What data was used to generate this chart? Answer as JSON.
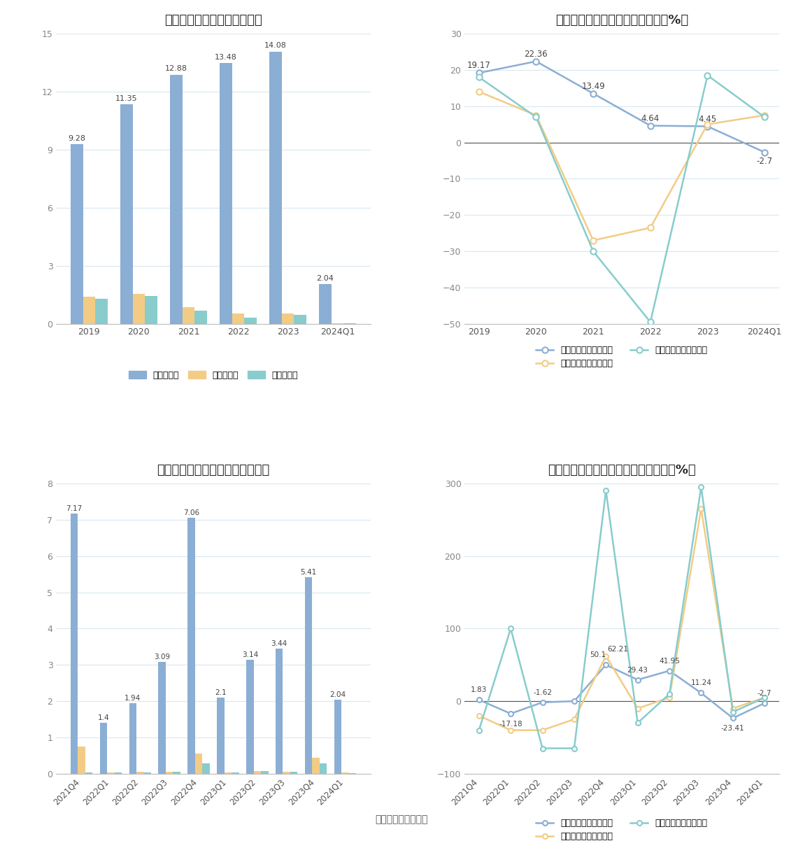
{
  "chart1": {
    "title": "历年营收、净利情况（亿元）",
    "categories": [
      "2019",
      "2020",
      "2021",
      "2022",
      "2023",
      "2024Q1"
    ],
    "revenue": [
      9.28,
      11.35,
      12.88,
      13.48,
      14.08,
      2.04
    ],
    "net_profit": [
      1.4,
      1.55,
      0.85,
      0.55,
      0.55,
      0.05
    ],
    "deducted_profit": [
      1.3,
      1.45,
      0.7,
      0.32,
      0.45,
      0.03
    ],
    "ylim": [
      0,
      15
    ],
    "yticks": [
      0,
      3,
      6,
      9,
      12,
      15
    ],
    "revenue_color": "#8BAED4",
    "net_profit_color": "#F2CC85",
    "deducted_profit_color": "#88CCCC",
    "legend_labels": [
      "营业总收入",
      "归母净利润",
      "扣非净利润"
    ]
  },
  "chart2": {
    "title": "历年营收、净利同比增长率情况（%）",
    "categories": [
      "2019",
      "2020",
      "2021",
      "2022",
      "2023",
      "2024Q1"
    ],
    "revenue_growth": [
      19.17,
      22.36,
      13.49,
      4.64,
      4.45,
      -2.7
    ],
    "net_profit_growth": [
      14.0,
      7.5,
      -27.0,
      -23.5,
      5.0,
      7.5
    ],
    "deducted_profit_growth": [
      18.0,
      7.0,
      -30.0,
      -49.5,
      18.5,
      7.0
    ],
    "ylim": [
      -50,
      30
    ],
    "yticks": [
      -50,
      -40,
      -30,
      -20,
      -10,
      0,
      10,
      20,
      30
    ],
    "revenue_color": "#8BAED4",
    "net_profit_color": "#F2CC85",
    "deducted_profit_color": "#88CCCC",
    "legend_labels": [
      "营业总收入同比增长率",
      "归母净利润同比增长率",
      "扣非净利润同比增长率"
    ]
  },
  "chart3": {
    "title": "营收、净利季度变动情况（亿元）",
    "categories": [
      "2021Q4",
      "2022Q1",
      "2022Q2",
      "2022Q3",
      "2022Q4",
      "2023Q1",
      "2023Q2",
      "2023Q3",
      "2023Q4",
      "2024Q1"
    ],
    "revenue": [
      7.17,
      1.4,
      1.94,
      3.09,
      7.06,
      2.1,
      3.14,
      3.44,
      5.41,
      2.04
    ],
    "net_profit": [
      0.75,
      0.04,
      0.05,
      0.06,
      0.55,
      0.04,
      0.07,
      0.06,
      0.45,
      0.04
    ],
    "deducted_profit": [
      0.04,
      0.03,
      0.04,
      0.06,
      0.28,
      0.03,
      0.07,
      0.05,
      0.28,
      0.02
    ],
    "ylim": [
      0,
      8
    ],
    "yticks": [
      0,
      1,
      2,
      3,
      4,
      5,
      6,
      7,
      8
    ],
    "revenue_color": "#8BAED4",
    "net_profit_color": "#F2CC85",
    "deducted_profit_color": "#88CCCC",
    "legend_labels": [
      "营业总收入",
      "归母净利润",
      "扣非净利润"
    ]
  },
  "chart4": {
    "title": "营收、净利同比增长率季度变动情况（%）",
    "categories": [
      "2021Q4",
      "2022Q1",
      "2022Q2",
      "2022Q3",
      "2022Q4",
      "2023Q1",
      "2023Q2",
      "2023Q3",
      "2023Q4",
      "2024Q1"
    ],
    "revenue_growth": [
      1.83,
      -17.18,
      -1.62,
      0.0,
      50.1,
      29.43,
      41.95,
      11.24,
      -23.41,
      -2.7
    ],
    "net_profit_growth": [
      -20.0,
      -40.0,
      -40.0,
      -25.0,
      62.21,
      -10.0,
      5.0,
      265.0,
      -10.0,
      5.0
    ],
    "deducted_profit_growth": [
      -40.0,
      100.0,
      -65.0,
      -65.0,
      290.0,
      -30.0,
      10.0,
      295.0,
      -15.0,
      5.0
    ],
    "ylim": [
      -100,
      300
    ],
    "yticks": [
      -100,
      0,
      100,
      200,
      300
    ],
    "revenue_color": "#8BAED4",
    "net_profit_color": "#F2CC85",
    "deducted_profit_color": "#88CCCC",
    "legend_labels": [
      "营业总收入同比增长率",
      "归母净利润同比增长率",
      "扣非净利润同比增长率"
    ]
  },
  "footer": "数据来源：恒生聚源",
  "background_color": "#FFFFFF",
  "grid_color": "#D8E8F0"
}
